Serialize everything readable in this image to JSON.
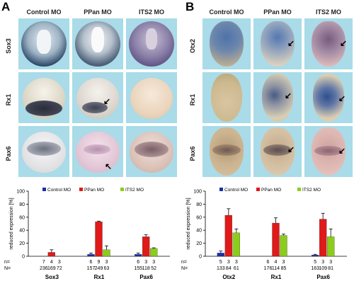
{
  "figure": {
    "panel_A": {
      "letter": "A",
      "columns": [
        "Control MO",
        "PPan MO",
        "ITS2 MO"
      ],
      "rows": [
        "Sox3",
        "Rx1",
        "Pax6"
      ]
    },
    "panel_B": {
      "letter": "B",
      "columns": [
        "Control MO",
        "PPan MO",
        "ITS2 MO"
      ],
      "rows": [
        "Otx2",
        "Rx1",
        "Pax6"
      ]
    }
  },
  "colors": {
    "control": "#1a2fa8",
    "ppan": "#e01919",
    "its2": "#8ccc1a",
    "cell_bg": "#a9dbe8"
  },
  "chart_data": [
    {
      "type": "bar",
      "ylabel": "reduced expression [%]",
      "ylim": [
        0,
        100
      ],
      "yticks": [
        0,
        20,
        40,
        60,
        80,
        100
      ],
      "legend": [
        "Control MO",
        "PPan MO",
        "ITS2 MO"
      ],
      "categories": [
        "Sox3",
        "Rx1",
        "Pax6"
      ],
      "series": [
        {
          "name": "Control MO",
          "values": [
            0,
            3,
            3
          ],
          "errors": [
            0,
            2,
            2
          ]
        },
        {
          "name": "PPan MO",
          "values": [
            6,
            53,
            30
          ],
          "errors": [
            4,
            1,
            3
          ]
        },
        {
          "name": "ITS2 MO",
          "values": [
            0,
            10,
            12
          ],
          "errors": [
            0,
            6,
            1
          ]
        }
      ],
      "n_label": "n=",
      "N_label": "N=",
      "n": [
        [
          "7",
          "4",
          "3"
        ],
        [
          "6",
          "9",
          "3"
        ],
        [
          "6",
          "3",
          "3"
        ]
      ],
      "N": [
        [
          "236",
          "169",
          "72"
        ],
        [
          "157",
          "249",
          "63"
        ],
        [
          "155",
          "118",
          "52"
        ]
      ]
    },
    {
      "type": "bar",
      "ylabel": "reduced expression [%]",
      "ylim": [
        0,
        100
      ],
      "yticks": [
        0,
        20,
        40,
        60,
        80,
        100
      ],
      "legend": [
        "Control MO",
        "PPan MO",
        "ITS2 MO"
      ],
      "categories": [
        "Otx2",
        "Rx1",
        "Pax6"
      ],
      "series": [
        {
          "name": "Control MO",
          "values": [
            5,
            0,
            2
          ],
          "errors": [
            3,
            0,
            1
          ]
        },
        {
          "name": "PPan MO",
          "values": [
            63,
            51,
            57
          ],
          "errors": [
            10,
            8,
            9
          ]
        },
        {
          "name": "ITS2 MO",
          "values": [
            36,
            32,
            30
          ],
          "errors": [
            6,
            2,
            12
          ]
        }
      ],
      "n_label": "n=",
      "N_label": "N=",
      "n": [
        [
          "5",
          "3",
          "3"
        ],
        [
          "6",
          "4",
          "3"
        ],
        [
          "5",
          "3",
          "3"
        ]
      ],
      "N": [
        [
          "133",
          "84",
          "61"
        ],
        [
          "176",
          "114",
          "85"
        ],
        [
          "163",
          "109",
          "81"
        ]
      ]
    }
  ]
}
